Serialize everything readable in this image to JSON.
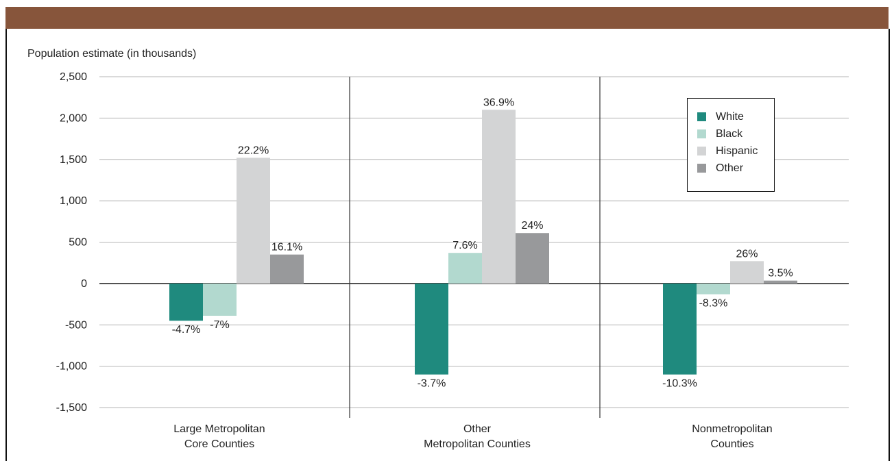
{
  "chart_data": {
    "type": "bar",
    "categories": [
      [
        "Large Metropolitan",
        "Core Counties"
      ],
      [
        "Other",
        "Metropolitan Counties"
      ],
      [
        "Nonmetropolitan",
        "Counties"
      ]
    ],
    "series": [
      {
        "name": "White",
        "color": "#1f8a7e",
        "values": [
          -450,
          -1100,
          -1100
        ],
        "labels": [
          "-4.7%",
          "-3.7%",
          "-10.3%"
        ]
      },
      {
        "name": "Black",
        "color": "#b2d9cf",
        "values": [
          -390,
          370,
          -130
        ],
        "labels": [
          "-7%",
          "7.6%",
          "-8.3%"
        ]
      },
      {
        "name": "Hispanic",
        "color": "#d3d4d5",
        "values": [
          1520,
          2100,
          270
        ],
        "labels": [
          "22.2%",
          "36.9%",
          "26%"
        ]
      },
      {
        "name": "Other",
        "color": "#98999b",
        "values": [
          350,
          610,
          35
        ],
        "labels": [
          "16.1%",
          "24%",
          "3.5%"
        ]
      }
    ],
    "ylabel": "Population estimate (in thousands)",
    "ylim": [
      -1500,
      2500
    ],
    "yticks": [
      2500,
      2000,
      1500,
      1000,
      500,
      0,
      -500,
      -1000,
      -1500
    ],
    "ytick_labels": [
      "2,500",
      "2,000",
      "1,500",
      "1,000",
      "500",
      "0",
      "-500",
      "-1,000",
      "-1,500"
    ],
    "grid": true,
    "legend_position": "top-right"
  },
  "colors": {
    "header": "#87553b",
    "grid": "#b5b5b5",
    "axis": "#222222"
  }
}
